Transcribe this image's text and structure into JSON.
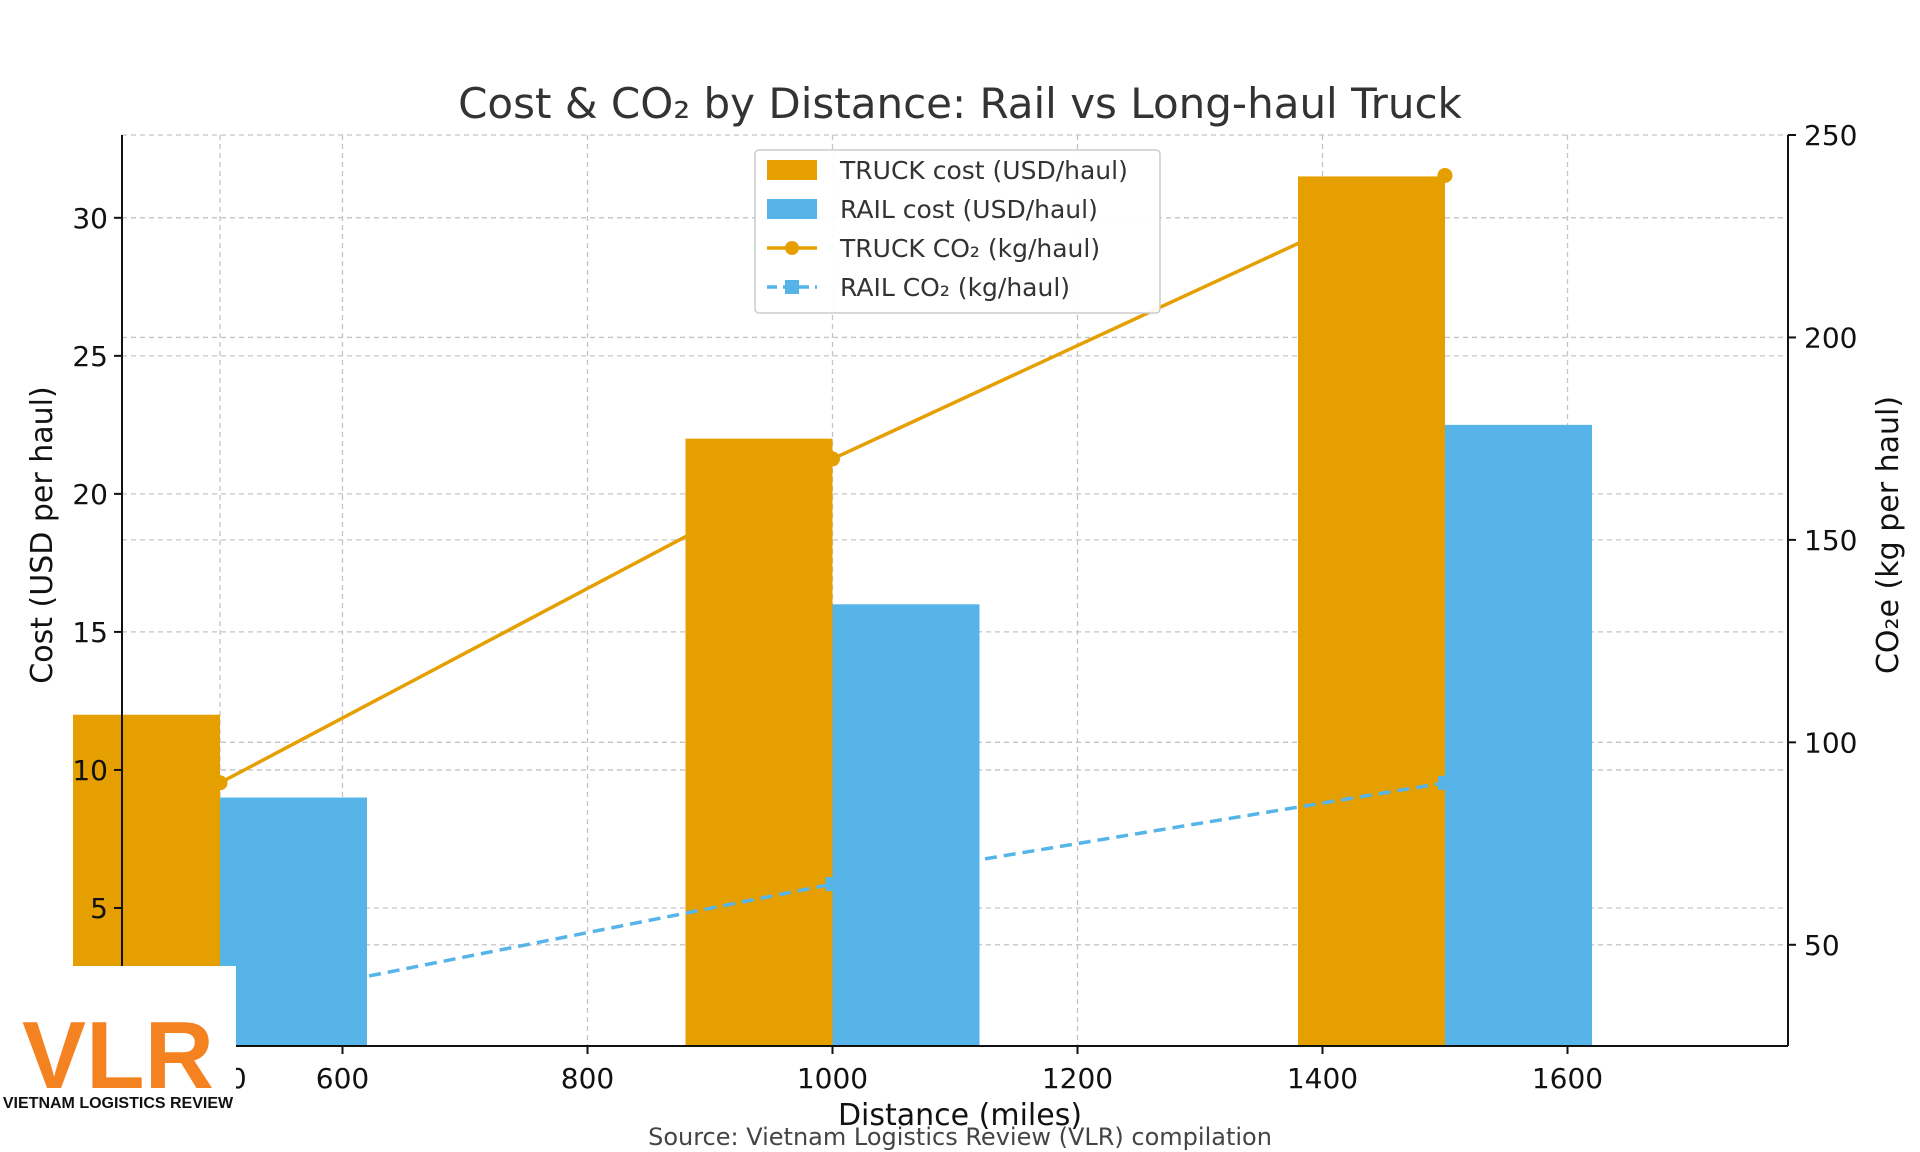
{
  "chart_data": {
    "type": "bar",
    "title": "Cost & CO₂ by Distance: Rail vs Long-haul Truck",
    "xlabel": "Distance (miles)",
    "ylabel": "Cost (USD per haul)",
    "y2label": "CO₂e (kg per haul)",
    "x": [
      500,
      1000,
      1500
    ],
    "xlim": [
      420,
      1780
    ],
    "xticks": [
      500,
      600,
      800,
      1000,
      1200,
      1400,
      1600
    ],
    "xtick_labels": [
      "500",
      "600",
      "800",
      "1000",
      "1200",
      "1400",
      "1600"
    ],
    "ylim": [
      0,
      33
    ],
    "yticks": [
      5,
      10,
      15,
      20,
      25,
      30
    ],
    "y2lim": [
      25,
      250
    ],
    "y2ticks": [
      50,
      100,
      150,
      200,
      250
    ],
    "grid": true,
    "legend_position": "top-center",
    "series": [
      {
        "name": "TRUCK cost (USD/haul)",
        "kind": "bar",
        "axis": "left",
        "color": "#E69F00",
        "values": [
          12,
          22,
          31.5
        ]
      },
      {
        "name": "RAIL cost (USD/haul)",
        "kind": "bar",
        "axis": "left",
        "color": "#56B4E9",
        "values": [
          9,
          16,
          22.5
        ]
      },
      {
        "name": "TRUCK CO₂ (kg/haul)",
        "kind": "line",
        "axis": "right",
        "color": "#E69F00",
        "marker": "circle",
        "linestyle": "solid",
        "values": [
          90,
          170,
          240
        ]
      },
      {
        "name": "RAIL CO₂ (kg/haul)",
        "kind": "line",
        "axis": "right",
        "color": "#56B4E9",
        "marker": "square",
        "linestyle": "dashed",
        "values": [
          35,
          65,
          90
        ]
      }
    ]
  },
  "source_note": "Source: Vietnam Logistics Review (VLR) compilation",
  "logo": {
    "text": "VLR",
    "tagline": "VIETNAM LOGISTICS REVIEW",
    "color": "#F58220"
  }
}
